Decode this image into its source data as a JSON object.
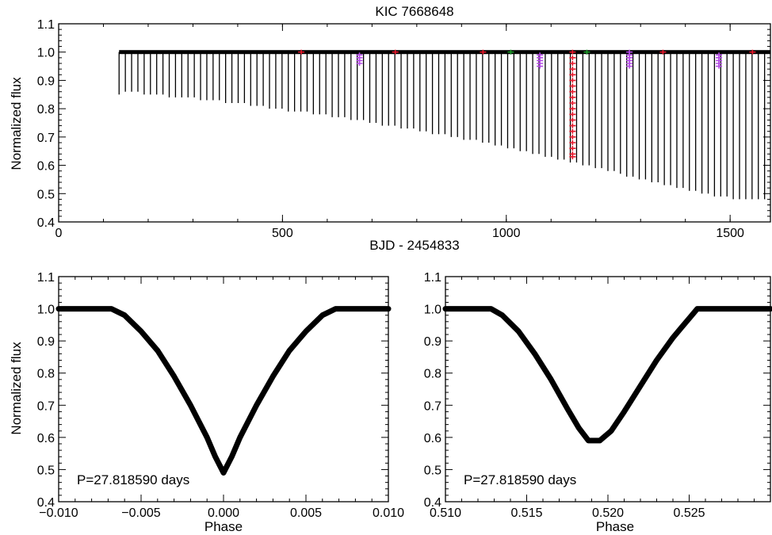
{
  "chart_data": [
    {
      "type": "line",
      "title": "KIC 7668648",
      "xlabel": "BJD - 2454833",
      "ylabel": "Normalized flux",
      "xlim": [
        0,
        1590
      ],
      "ylim": [
        0.4,
        1.1
      ],
      "xticks": [
        0,
        500,
        1000,
        1500
      ],
      "yticks": [
        0.4,
        0.5,
        0.6,
        0.7,
        0.8,
        0.9,
        1.0,
        1.1
      ],
      "grid": false,
      "baseline_flux": 1.0,
      "data_range": [
        135,
        1590
      ],
      "eclipses": {
        "name": "",
        "x": [
          135,
          149,
          163,
          177,
          191,
          205,
          219,
          233,
          247,
          261,
          275,
          289,
          303,
          317,
          331,
          345,
          359,
          373,
          387,
          401,
          415,
          429,
          443,
          457,
          471,
          485,
          499,
          513,
          527,
          541,
          555,
          569,
          583,
          597,
          611,
          625,
          639,
          653,
          667,
          681,
          695,
          709,
          723,
          737,
          751,
          765,
          779,
          793,
          807,
          821,
          835,
          849,
          863,
          877,
          891,
          905,
          919,
          933,
          947,
          961,
          975,
          989,
          1003,
          1017,
          1031,
          1045,
          1059,
          1073,
          1087,
          1101,
          1115,
          1129,
          1143,
          1157,
          1171,
          1185,
          1199,
          1213,
          1227,
          1241,
          1255,
          1269,
          1283,
          1297,
          1311,
          1325,
          1339,
          1353,
          1367,
          1381,
          1395,
          1409,
          1423,
          1437,
          1451,
          1465,
          1479,
          1493,
          1507,
          1521,
          1535,
          1549,
          1563,
          1577
        ],
        "min_flux": [
          0.85,
          0.86,
          0.86,
          0.86,
          0.85,
          0.85,
          0.85,
          0.85,
          0.84,
          0.84,
          0.84,
          0.84,
          0.84,
          0.83,
          0.83,
          0.83,
          0.83,
          0.82,
          0.82,
          0.82,
          0.82,
          0.81,
          0.81,
          0.81,
          0.8,
          0.8,
          0.8,
          0.79,
          0.79,
          0.79,
          0.79,
          0.78,
          0.78,
          0.78,
          0.77,
          0.77,
          0.77,
          0.76,
          0.76,
          0.76,
          0.75,
          0.75,
          0.74,
          0.74,
          0.74,
          0.73,
          0.73,
          0.73,
          0.72,
          0.72,
          0.71,
          0.71,
          0.71,
          0.7,
          0.7,
          0.69,
          0.69,
          0.69,
          0.68,
          0.68,
          0.67,
          0.67,
          0.66,
          0.66,
          0.65,
          0.65,
          0.64,
          0.64,
          0.63,
          0.63,
          0.62,
          0.62,
          0.61,
          0.61,
          0.6,
          0.6,
          0.59,
          0.59,
          0.58,
          0.58,
          0.57,
          0.56,
          0.56,
          0.55,
          0.55,
          0.54,
          0.54,
          0.53,
          0.53,
          0.52,
          0.52,
          0.51,
          0.51,
          0.5,
          0.5,
          0.49,
          0.49,
          0.49,
          0.48,
          0.48,
          0.48,
          0.48,
          0.48,
          0.48
        ]
      },
      "markers": [
        {
          "color": "#e8192c",
          "x": 542,
          "y_values": [
            1.0
          ]
        },
        {
          "color": "#e8192c",
          "x": 752,
          "y_values": [
            1.0
          ]
        },
        {
          "color": "#e8192c",
          "x": 948,
          "y_values": [
            1.0
          ]
        },
        {
          "color": "#e8192c",
          "x": 1148,
          "y_values": [
            1.0,
            0.98,
            0.96,
            0.94,
            0.92,
            0.9,
            0.88,
            0.86,
            0.84,
            0.82,
            0.8,
            0.78,
            0.76,
            0.74,
            0.72,
            0.7,
            0.68,
            0.66,
            0.64,
            0.63
          ]
        },
        {
          "color": "#e8192c",
          "x": 1350,
          "y_values": [
            1.0
          ]
        },
        {
          "color": "#e8192c",
          "x": 1550,
          "y_values": [
            1.0
          ]
        },
        {
          "color": "#1e9a2a",
          "x": 1010,
          "y_values": [
            1.0
          ]
        },
        {
          "color": "#1e9a2a",
          "x": 1180,
          "y_values": [
            1.0
          ]
        },
        {
          "color": "#b44be6",
          "x": 672,
          "y_values": [
            0.99,
            0.98,
            0.97,
            0.96
          ]
        },
        {
          "color": "#b44be6",
          "x": 1075,
          "y_values": [
            0.99,
            0.98,
            0.97,
            0.96,
            0.95
          ]
        },
        {
          "color": "#b44be6",
          "x": 1275,
          "y_values": [
            1.0,
            0.99,
            0.98,
            0.97,
            0.96,
            0.95
          ]
        },
        {
          "color": "#b44be6",
          "x": 1475,
          "y_values": [
            0.99,
            0.98,
            0.97,
            0.96,
            0.95
          ]
        }
      ]
    },
    {
      "type": "line",
      "title": "",
      "xlabel": "Phase",
      "ylabel": "Normalized flux",
      "xlim": [
        -0.01,
        0.01
      ],
      "ylim": [
        0.4,
        1.1
      ],
      "xticks": [
        -0.01,
        -0.005,
        0.0,
        0.005,
        0.01
      ],
      "xtick_labels": [
        "−0.010",
        "−0.005",
        "0.000",
        "0.005",
        "0.010"
      ],
      "yticks": [
        0.4,
        0.5,
        0.6,
        0.7,
        0.8,
        0.9,
        1.0,
        1.1
      ],
      "annotation": "P=27.818590 days",
      "series": [
        {
          "name": "",
          "x": [
            -0.01,
            -0.008,
            -0.0068,
            -0.006,
            -0.005,
            -0.004,
            -0.003,
            -0.002,
            -0.001,
            -0.0005,
            0.0,
            0.0005,
            0.001,
            0.002,
            0.003,
            0.004,
            0.005,
            0.006,
            0.0068,
            0.008,
            0.01
          ],
          "y": [
            1.0,
            1.0,
            1.0,
            0.98,
            0.93,
            0.87,
            0.79,
            0.7,
            0.6,
            0.54,
            0.49,
            0.54,
            0.6,
            0.7,
            0.79,
            0.87,
            0.93,
            0.98,
            1.0,
            1.0,
            1.0
          ]
        }
      ]
    },
    {
      "type": "line",
      "title": "",
      "xlabel": "Phase",
      "ylabel": "",
      "xlim": [
        0.51,
        0.53
      ],
      "ylim": [
        0.4,
        1.1
      ],
      "xticks": [
        0.51,
        0.515,
        0.52,
        0.525
      ],
      "xtick_labels": [
        "0.510",
        "0.515",
        "0.520",
        "0.525"
      ],
      "yticks": [
        0.4,
        0.5,
        0.6,
        0.7,
        0.8,
        0.9,
        1.0,
        1.1
      ],
      "annotation": "P=27.818590 days",
      "series": [
        {
          "name": "",
          "x": [
            0.51,
            0.512,
            0.5128,
            0.5135,
            0.5145,
            0.5155,
            0.5165,
            0.5175,
            0.5182,
            0.5188,
            0.5195,
            0.5202,
            0.521,
            0.522,
            0.523,
            0.524,
            0.5245,
            0.525,
            0.5255,
            0.527,
            0.53
          ],
          "y": [
            1.0,
            1.0,
            1.0,
            0.98,
            0.93,
            0.86,
            0.78,
            0.69,
            0.63,
            0.59,
            0.59,
            0.62,
            0.68,
            0.76,
            0.84,
            0.91,
            0.94,
            0.97,
            1.0,
            1.0,
            1.0
          ]
        }
      ]
    }
  ]
}
